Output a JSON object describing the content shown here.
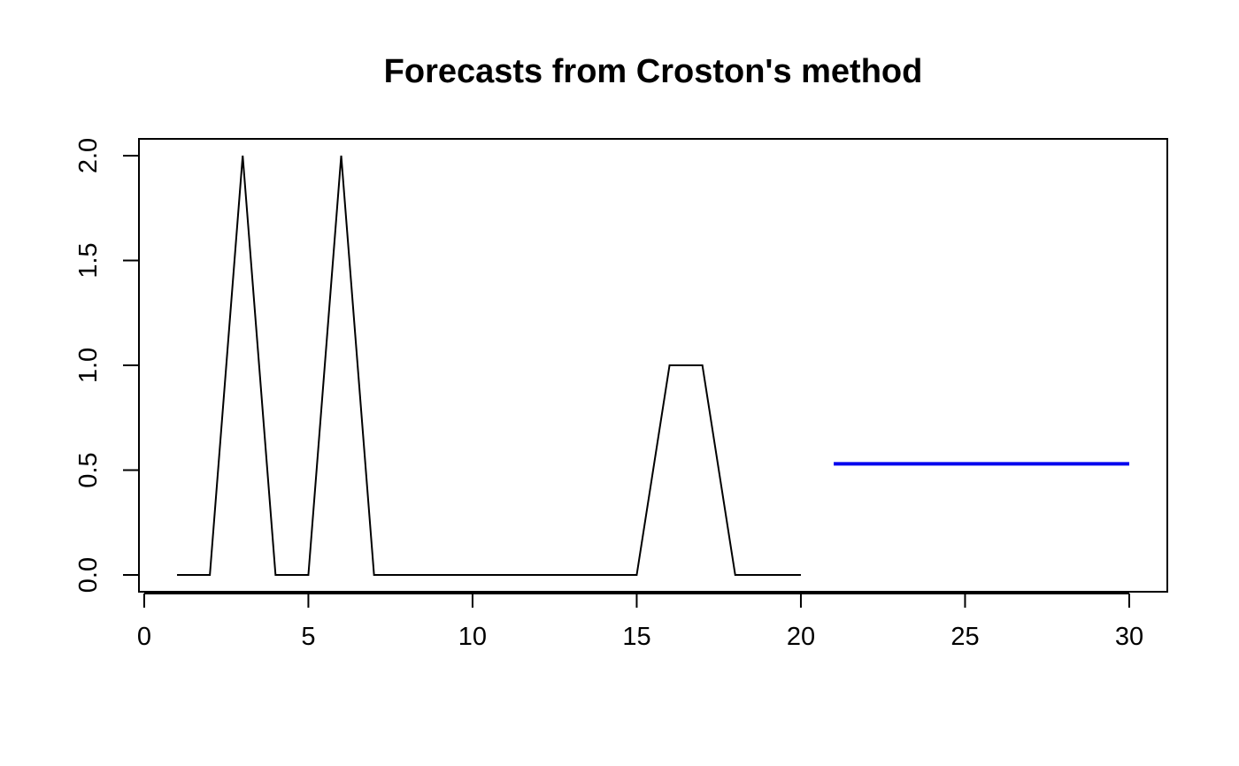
{
  "chart_data": {
    "type": "line",
    "title": "Forecasts from Croston's method",
    "xlabel": "",
    "ylabel": "",
    "xlim": [
      -0.16,
      31.16
    ],
    "ylim": [
      -0.08,
      2.08
    ],
    "x_ticks": [
      0,
      5,
      10,
      15,
      20,
      25,
      30
    ],
    "x_tick_labels": [
      "0",
      "5",
      "10",
      "15",
      "20",
      "25",
      "30"
    ],
    "y_ticks": [
      0.0,
      0.5,
      1.0,
      1.5,
      2.0
    ],
    "y_tick_labels": [
      "0.0",
      "0.5",
      "1.0",
      "1.5",
      "2.0"
    ],
    "grid": false,
    "legend": "none",
    "series": [
      {
        "role": "observed",
        "color": "#000000",
        "x": [
          1,
          2,
          3,
          4,
          5,
          6,
          7,
          8,
          9,
          10,
          11,
          12,
          13,
          14,
          15,
          16,
          17,
          18,
          19,
          20
        ],
        "y": [
          0,
          0,
          2,
          0,
          0,
          2,
          0,
          0,
          0,
          0,
          0,
          0,
          0,
          0,
          0,
          1,
          1,
          0,
          0,
          0
        ]
      },
      {
        "role": "forecast",
        "color": "#0000ee",
        "x": [
          21,
          22,
          23,
          24,
          25,
          26,
          27,
          28,
          29,
          30
        ],
        "y": [
          0.53,
          0.53,
          0.53,
          0.53,
          0.53,
          0.53,
          0.53,
          0.53,
          0.53,
          0.53
        ]
      }
    ]
  }
}
